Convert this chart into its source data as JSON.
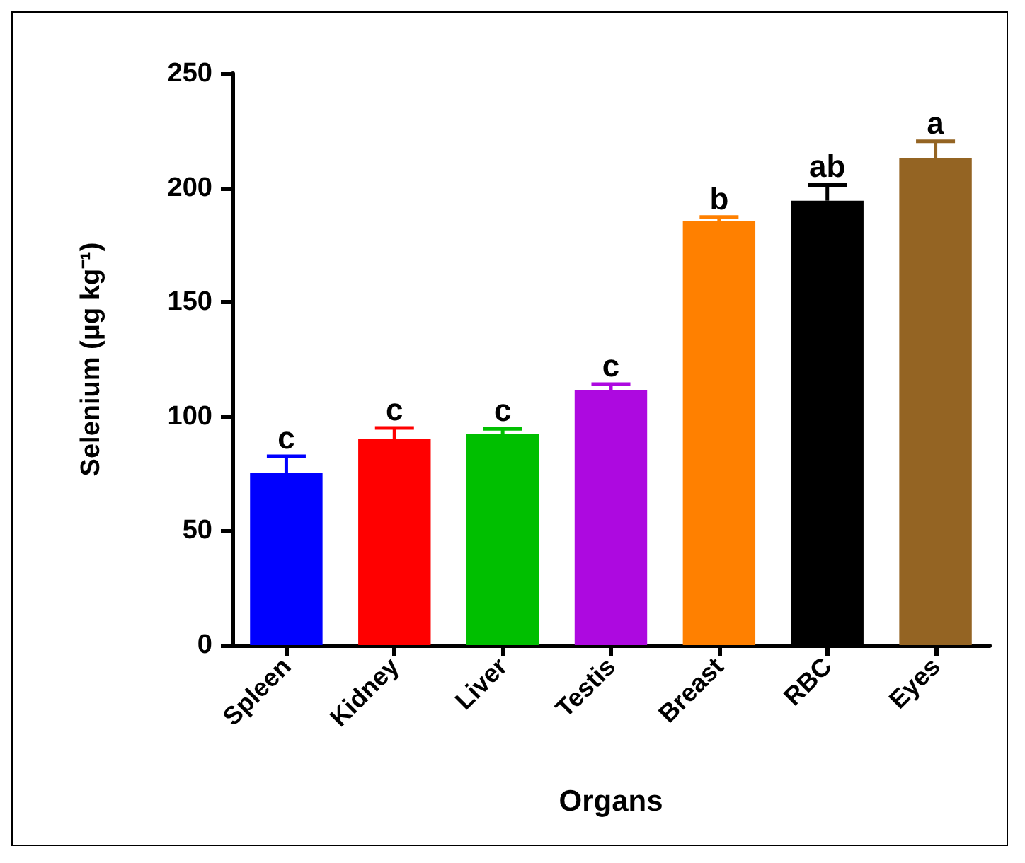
{
  "chart_data": {
    "type": "bar",
    "xlabel": "Organs",
    "ylabel": "Selenium (μg kg⁻¹)",
    "categories": [
      "Spleen",
      "Kidney",
      "Liver",
      "Testis",
      "Breast",
      "RBC",
      "Eyes"
    ],
    "values": [
      75.3,
      90.3,
      92.3,
      111.4,
      185.4,
      194.4,
      213.1
    ],
    "colors": [
      "#0000ff",
      "#ff0000",
      "#00bf00",
      "#ad09e0",
      "#ff8000",
      "#000000",
      "#946423"
    ],
    "errors": [
      [
        75.3,
        82.6
      ],
      [
        90.3,
        95
      ],
      [
        92.3,
        94.6
      ],
      [
        111.4,
        114.2
      ],
      [
        185.4,
        187.3
      ],
      [
        194.4,
        201.3
      ],
      [
        213.1,
        220.4
      ]
    ],
    "ylim": [
      0,
      250
    ],
    "yticks": [
      0,
      50,
      100,
      150,
      200,
      250
    ],
    "grid": false,
    "annotations": [
      {
        "text": "c",
        "x": "Spleen",
        "y": 82.6
      },
      {
        "text": "c",
        "x": "Kidney",
        "y": 95
      },
      {
        "text": "c",
        "x": "Liver",
        "y": 94.6
      },
      {
        "text": "c",
        "x": "Testis",
        "y": 114.2
      },
      {
        "text": "b",
        "x": "Breast",
        "y": 187.3
      },
      {
        "text": "ab",
        "x": "RBC",
        "y": 201.3
      },
      {
        "text": "a",
        "x": "Eyes",
        "y": 220.4
      }
    ]
  }
}
